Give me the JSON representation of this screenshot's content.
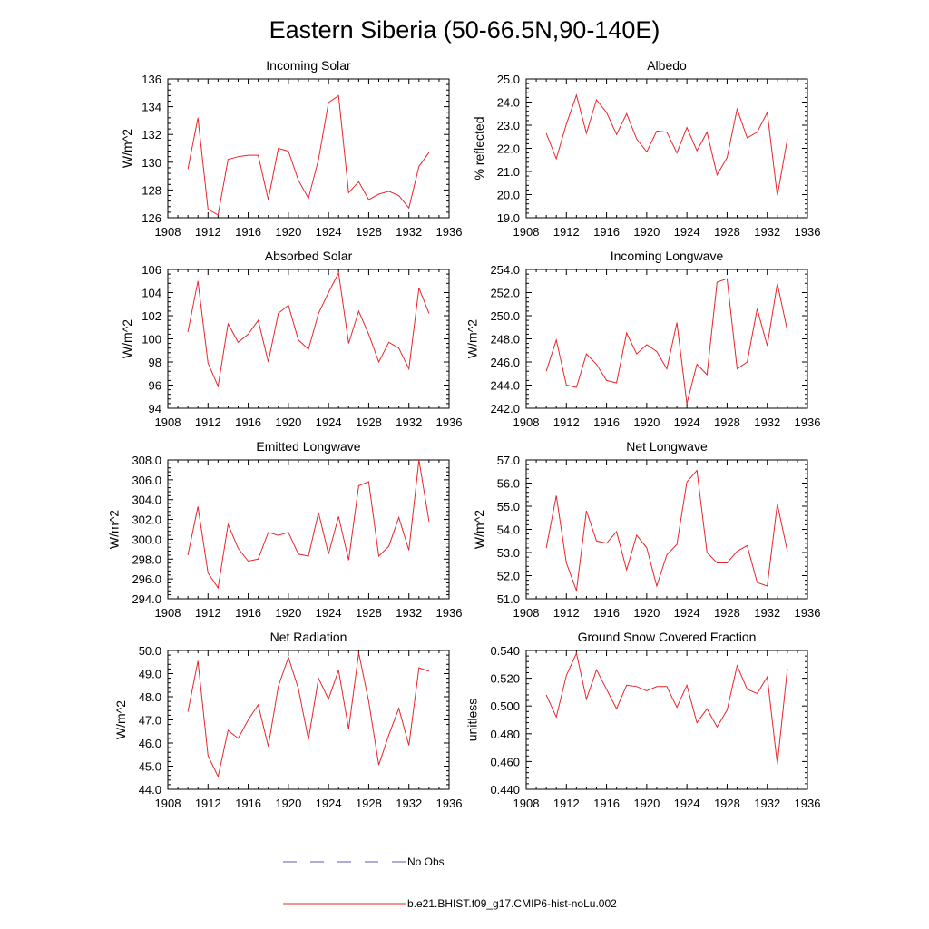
{
  "title": "Eastern Siberia (50-66.5N,90-140E)",
  "legend": [
    {
      "label": "No Obs",
      "color": "#5b5bb0",
      "style": "dashed"
    },
    {
      "label": "b.e21.BHIST.f09_g17.CMIP6-hist-noLu.002",
      "color": "#e8252a",
      "style": "solid"
    }
  ],
  "chart_data": [
    {
      "type": "line",
      "title": "Incoming Solar",
      "ylabel": "W/m^2",
      "xlim": [
        1908,
        1936
      ],
      "xticks": [
        1908,
        1912,
        1916,
        1920,
        1924,
        1928,
        1932,
        1936
      ],
      "ylim": [
        126,
        136
      ],
      "yticks": [
        "126",
        "128",
        "130",
        "132",
        "134",
        "136"
      ],
      "x": [
        1910,
        1911,
        1912,
        1913,
        1914,
        1915,
        1916,
        1917,
        1918,
        1919,
        1920,
        1921,
        1922,
        1923,
        1924,
        1925,
        1926,
        1927,
        1928,
        1929,
        1930,
        1931,
        1932,
        1933,
        1934
      ],
      "series": [
        {
          "name": "b.e21.BHIST.f09_g17.CMIP6-hist-noLu.002",
          "color": "#e8252a",
          "values": [
            129.5,
            133.2,
            126.6,
            126.2,
            130.2,
            130.4,
            130.5,
            130.5,
            127.3,
            131.0,
            130.8,
            128.7,
            127.4,
            130.2,
            134.3,
            134.8,
            127.8,
            128.6,
            127.3,
            127.7,
            127.9,
            127.6,
            126.7,
            129.7,
            130.7
          ]
        }
      ]
    },
    {
      "type": "line",
      "title": "Albedo",
      "ylabel": "% reflected",
      "xlim": [
        1908,
        1936
      ],
      "xticks": [
        1908,
        1912,
        1916,
        1920,
        1924,
        1928,
        1932,
        1936
      ],
      "ylim": [
        19,
        25
      ],
      "yticks": [
        "19.0",
        "20.0",
        "21.0",
        "22.0",
        "23.0",
        "24.0",
        "25.0"
      ],
      "x": [
        1910,
        1911,
        1912,
        1913,
        1914,
        1915,
        1916,
        1917,
        1918,
        1919,
        1920,
        1921,
        1922,
        1923,
        1924,
        1925,
        1926,
        1927,
        1928,
        1929,
        1930,
        1931,
        1932,
        1933,
        1934
      ],
      "series": [
        {
          "name": "b.e21.BHIST.f09_g17.CMIP6-hist-noLu.002",
          "color": "#e8252a",
          "values": [
            22.65,
            21.55,
            23.05,
            24.3,
            22.65,
            24.1,
            23.55,
            22.6,
            23.5,
            22.4,
            21.85,
            22.75,
            22.7,
            21.8,
            22.9,
            21.9,
            22.7,
            20.85,
            21.6,
            23.7,
            22.45,
            22.7,
            23.55,
            19.95,
            22.4
          ]
        }
      ]
    },
    {
      "type": "line",
      "title": "Absorbed Solar",
      "ylabel": "W/m^2",
      "xlim": [
        1908,
        1936
      ],
      "xticks": [
        1908,
        1912,
        1916,
        1920,
        1924,
        1928,
        1932,
        1936
      ],
      "ylim": [
        94,
        106
      ],
      "yticks": [
        "94",
        "96",
        "98",
        "100",
        "102",
        "104",
        "106"
      ],
      "x": [
        1910,
        1911,
        1912,
        1913,
        1914,
        1915,
        1916,
        1917,
        1918,
        1919,
        1920,
        1921,
        1922,
        1923,
        1924,
        1925,
        1926,
        1927,
        1928,
        1929,
        1930,
        1931,
        1932,
        1933,
        1934
      ],
      "series": [
        {
          "name": "b.e21.BHIST.f09_g17.CMIP6-hist-noLu.002",
          "color": "#e8252a",
          "values": [
            100.6,
            105.0,
            97.9,
            95.9,
            101.3,
            99.7,
            100.4,
            101.6,
            98.0,
            102.2,
            102.9,
            99.9,
            99.1,
            102.2,
            104.0,
            105.7,
            99.6,
            102.4,
            100.4,
            98.0,
            99.7,
            99.2,
            97.4,
            104.4,
            102.2
          ]
        }
      ]
    },
    {
      "type": "line",
      "title": "Incoming Longwave",
      "ylabel": "W/m^2",
      "xlim": [
        1908,
        1936
      ],
      "xticks": [
        1908,
        1912,
        1916,
        1920,
        1924,
        1928,
        1932,
        1936
      ],
      "ylim": [
        242,
        254
      ],
      "yticks": [
        "242.0",
        "244.0",
        "246.0",
        "248.0",
        "250.0",
        "252.0",
        "254.0"
      ],
      "x": [
        1910,
        1911,
        1912,
        1913,
        1914,
        1915,
        1916,
        1917,
        1918,
        1919,
        1920,
        1921,
        1922,
        1923,
        1924,
        1925,
        1926,
        1927,
        1928,
        1929,
        1930,
        1931,
        1932,
        1933,
        1934
      ],
      "series": [
        {
          "name": "b.e21.BHIST.f09_g17.CMIP6-hist-noLu.002",
          "color": "#e8252a",
          "values": [
            245.2,
            247.9,
            244.0,
            243.8,
            246.7,
            245.8,
            244.4,
            244.2,
            248.5,
            246.7,
            247.5,
            246.9,
            245.4,
            249.4,
            242.4,
            245.8,
            244.9,
            252.9,
            253.2,
            245.4,
            246.0,
            250.6,
            247.4,
            252.8,
            248.7
          ]
        }
      ]
    },
    {
      "type": "line",
      "title": "Emitted Longwave",
      "ylabel": "W/m^2",
      "xlim": [
        1908,
        1936
      ],
      "xticks": [
        1908,
        1912,
        1916,
        1920,
        1924,
        1928,
        1932,
        1936
      ],
      "ylim": [
        294,
        308
      ],
      "yticks": [
        "294.0",
        "296.0",
        "298.0",
        "300.0",
        "302.0",
        "304.0",
        "306.0",
        "308.0"
      ],
      "x": [
        1910,
        1911,
        1912,
        1913,
        1914,
        1915,
        1916,
        1917,
        1918,
        1919,
        1920,
        1921,
        1922,
        1923,
        1924,
        1925,
        1926,
        1927,
        1928,
        1929,
        1930,
        1931,
        1932,
        1933,
        1934
      ],
      "series": [
        {
          "name": "b.e21.BHIST.f09_g17.CMIP6-hist-noLu.002",
          "color": "#e8252a",
          "values": [
            298.4,
            303.3,
            296.6,
            295.1,
            301.5,
            299.1,
            297.8,
            298.0,
            300.7,
            300.4,
            300.7,
            298.5,
            298.3,
            302.7,
            298.5,
            302.3,
            297.9,
            305.4,
            305.8,
            298.3,
            299.3,
            302.2,
            298.9,
            308.0,
            301.8
          ]
        }
      ]
    },
    {
      "type": "line",
      "title": "Net Longwave",
      "ylabel": "W/m^2",
      "xlim": [
        1908,
        1936
      ],
      "xticks": [
        1908,
        1912,
        1916,
        1920,
        1924,
        1928,
        1932,
        1936
      ],
      "ylim": [
        51,
        57
      ],
      "yticks": [
        "51.0",
        "52.0",
        "53.0",
        "54.0",
        "55.0",
        "56.0",
        "57.0"
      ],
      "x": [
        1910,
        1911,
        1912,
        1913,
        1914,
        1915,
        1916,
        1917,
        1918,
        1919,
        1920,
        1921,
        1922,
        1923,
        1924,
        1925,
        1926,
        1927,
        1928,
        1929,
        1930,
        1931,
        1932,
        1933,
        1934
      ],
      "series": [
        {
          "name": "b.e21.BHIST.f09_g17.CMIP6-hist-noLu.002",
          "color": "#e8252a",
          "values": [
            53.2,
            55.45,
            52.55,
            51.35,
            54.8,
            53.5,
            53.4,
            53.9,
            52.25,
            53.75,
            53.2,
            51.55,
            52.9,
            53.35,
            56.05,
            56.55,
            53.0,
            52.55,
            52.55,
            53.05,
            53.3,
            51.7,
            51.55,
            55.1,
            53.05
          ]
        }
      ]
    },
    {
      "type": "line",
      "title": "Net Radiation",
      "ylabel": "W/m^2",
      "xlim": [
        1908,
        1936
      ],
      "xticks": [
        1908,
        1912,
        1916,
        1920,
        1924,
        1928,
        1932,
        1936
      ],
      "ylim": [
        44,
        50
      ],
      "yticks": [
        "44.0",
        "45.0",
        "46.0",
        "47.0",
        "48.0",
        "49.0",
        "50.0"
      ],
      "x": [
        1910,
        1911,
        1912,
        1913,
        1914,
        1915,
        1916,
        1917,
        1918,
        1919,
        1920,
        1921,
        1922,
        1923,
        1924,
        1925,
        1926,
        1927,
        1928,
        1929,
        1930,
        1931,
        1932,
        1933,
        1934
      ],
      "series": [
        {
          "name": "b.e21.BHIST.f09_g17.CMIP6-hist-noLu.002",
          "color": "#e8252a",
          "values": [
            47.35,
            49.55,
            45.45,
            44.55,
            46.55,
            46.2,
            47.0,
            47.65,
            45.85,
            48.45,
            49.7,
            48.35,
            46.15,
            48.8,
            47.9,
            49.15,
            46.6,
            49.9,
            47.8,
            45.05,
            46.35,
            47.5,
            45.9,
            49.25,
            49.1
          ]
        }
      ]
    },
    {
      "type": "line",
      "title": "Ground Snow Covered Fraction",
      "ylabel": "unitless",
      "xlim": [
        1908,
        1936
      ],
      "xticks": [
        1908,
        1912,
        1916,
        1920,
        1924,
        1928,
        1932,
        1936
      ],
      "ylim": [
        0.44,
        0.54
      ],
      "yticks": [
        "0.440",
        "0.460",
        "0.480",
        "0.500",
        "0.520",
        "0.540"
      ],
      "x": [
        1910,
        1911,
        1912,
        1913,
        1914,
        1915,
        1916,
        1917,
        1918,
        1919,
        1920,
        1921,
        1922,
        1923,
        1924,
        1925,
        1926,
        1927,
        1928,
        1929,
        1930,
        1931,
        1932,
        1933,
        1934
      ],
      "series": [
        {
          "name": "b.e21.BHIST.f09_g17.CMIP6-hist-noLu.002",
          "color": "#e8252a",
          "values": [
            0.508,
            0.492,
            0.522,
            0.538,
            0.505,
            0.526,
            0.512,
            0.498,
            0.515,
            0.514,
            0.511,
            0.514,
            0.514,
            0.499,
            0.515,
            0.488,
            0.498,
            0.485,
            0.497,
            0.529,
            0.512,
            0.509,
            0.521,
            0.458,
            0.527
          ]
        }
      ]
    }
  ]
}
